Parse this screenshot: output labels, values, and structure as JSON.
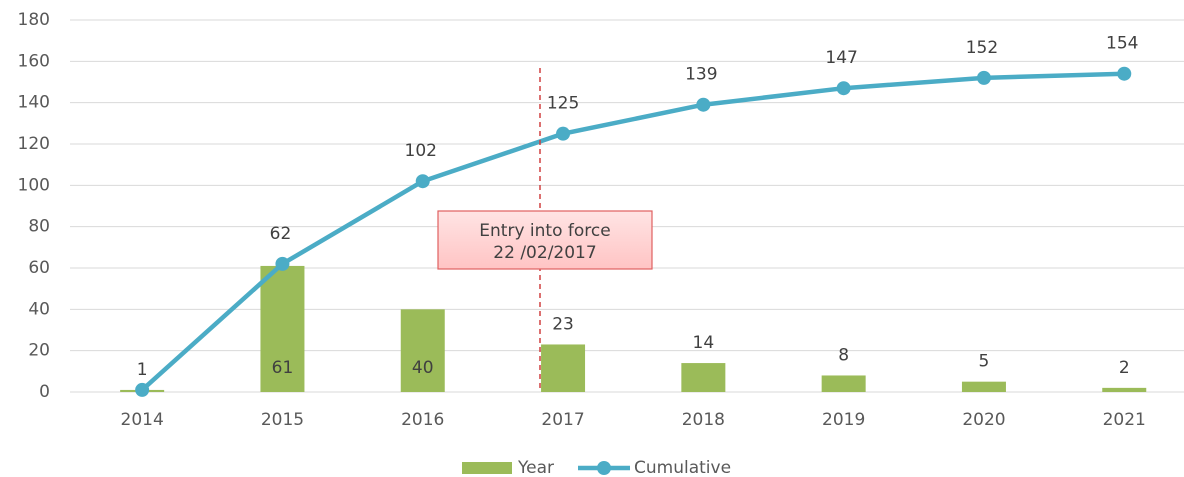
{
  "chart_data": {
    "type": "bar_line",
    "categories": [
      "2014",
      "2015",
      "2016",
      "2017",
      "2018",
      "2019",
      "2020",
      "2021"
    ],
    "series": [
      {
        "name": "Year",
        "type": "bar",
        "color": "#9bbb59",
        "values": [
          1,
          61,
          40,
          23,
          14,
          8,
          5,
          2
        ]
      },
      {
        "name": "Cumulative",
        "type": "line",
        "color": "#4bacc6",
        "values": [
          1,
          62,
          102,
          125,
          139,
          147,
          152,
          154
        ]
      }
    ],
    "annotations": [
      "Entry into force",
      "22 /02/2017"
    ],
    "ylim": [
      0,
      180
    ],
    "yticks": [
      0,
      20,
      40,
      60,
      80,
      100,
      120,
      140,
      160,
      180
    ],
    "grid": true,
    "legend": "bottom"
  }
}
